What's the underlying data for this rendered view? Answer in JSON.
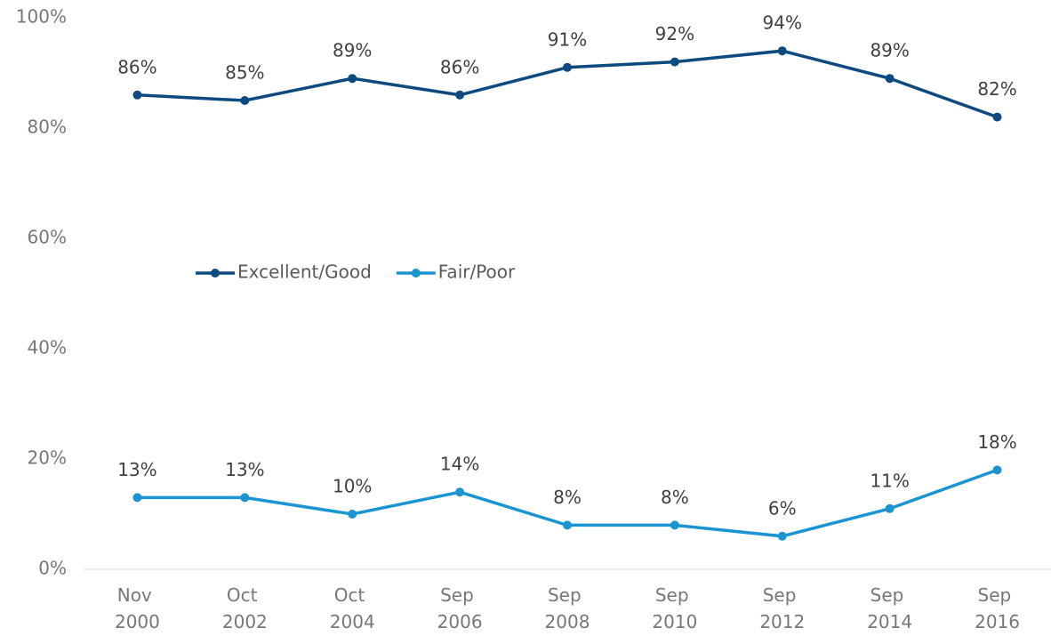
{
  "chart_data": {
    "type": "line",
    "categories": [
      "Nov 2000",
      "Oct 2002",
      "Oct 2004",
      "Sep 2006",
      "Sep 2008",
      "Sep 2010",
      "Sep 2012",
      "Sep 2014",
      "Sep 2016"
    ],
    "series": [
      {
        "name": "Excellent/Good",
        "color": "#0d4a80",
        "values": [
          86,
          85,
          89,
          86,
          91,
          92,
          94,
          89,
          82
        ],
        "value_labels": [
          "86%",
          "85%",
          "89%",
          "86%",
          "91%",
          "92%",
          "94%",
          "89%",
          "82%"
        ]
      },
      {
        "name": "Fair/Poor",
        "color": "#1b94d2",
        "values": [
          13,
          13,
          10,
          14,
          8,
          8,
          6,
          11,
          18
        ],
        "value_labels": [
          "13%",
          "13%",
          "10%",
          "14%",
          "8%",
          "8%",
          "6%",
          "11%",
          "18%"
        ]
      }
    ],
    "ylim": [
      0,
      100
    ],
    "yticks": [
      {
        "value": 0,
        "label": "0%"
      },
      {
        "value": 20,
        "label": "20%"
      },
      {
        "value": 40,
        "label": "40%"
      },
      {
        "value": 60,
        "label": "60%"
      },
      {
        "value": 80,
        "label": "80%"
      },
      {
        "value": 100,
        "label": "100%"
      }
    ],
    "grid": false,
    "legend": "center-left"
  }
}
